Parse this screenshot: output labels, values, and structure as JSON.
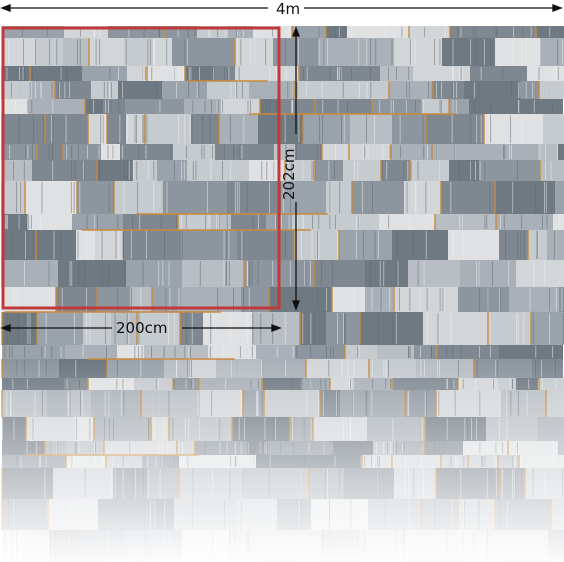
{
  "dimensions": {
    "total_width_label": "4m",
    "panel_width_label": "200cm",
    "panel_height_label": "202cm"
  },
  "colors": {
    "grout_orange": "#c98a3c",
    "tile_grey_dark": "#8a939c",
    "tile_grey_light": "#d7dadc",
    "highlight_frame": "#c0393b",
    "dimension_line": "#111111"
  }
}
